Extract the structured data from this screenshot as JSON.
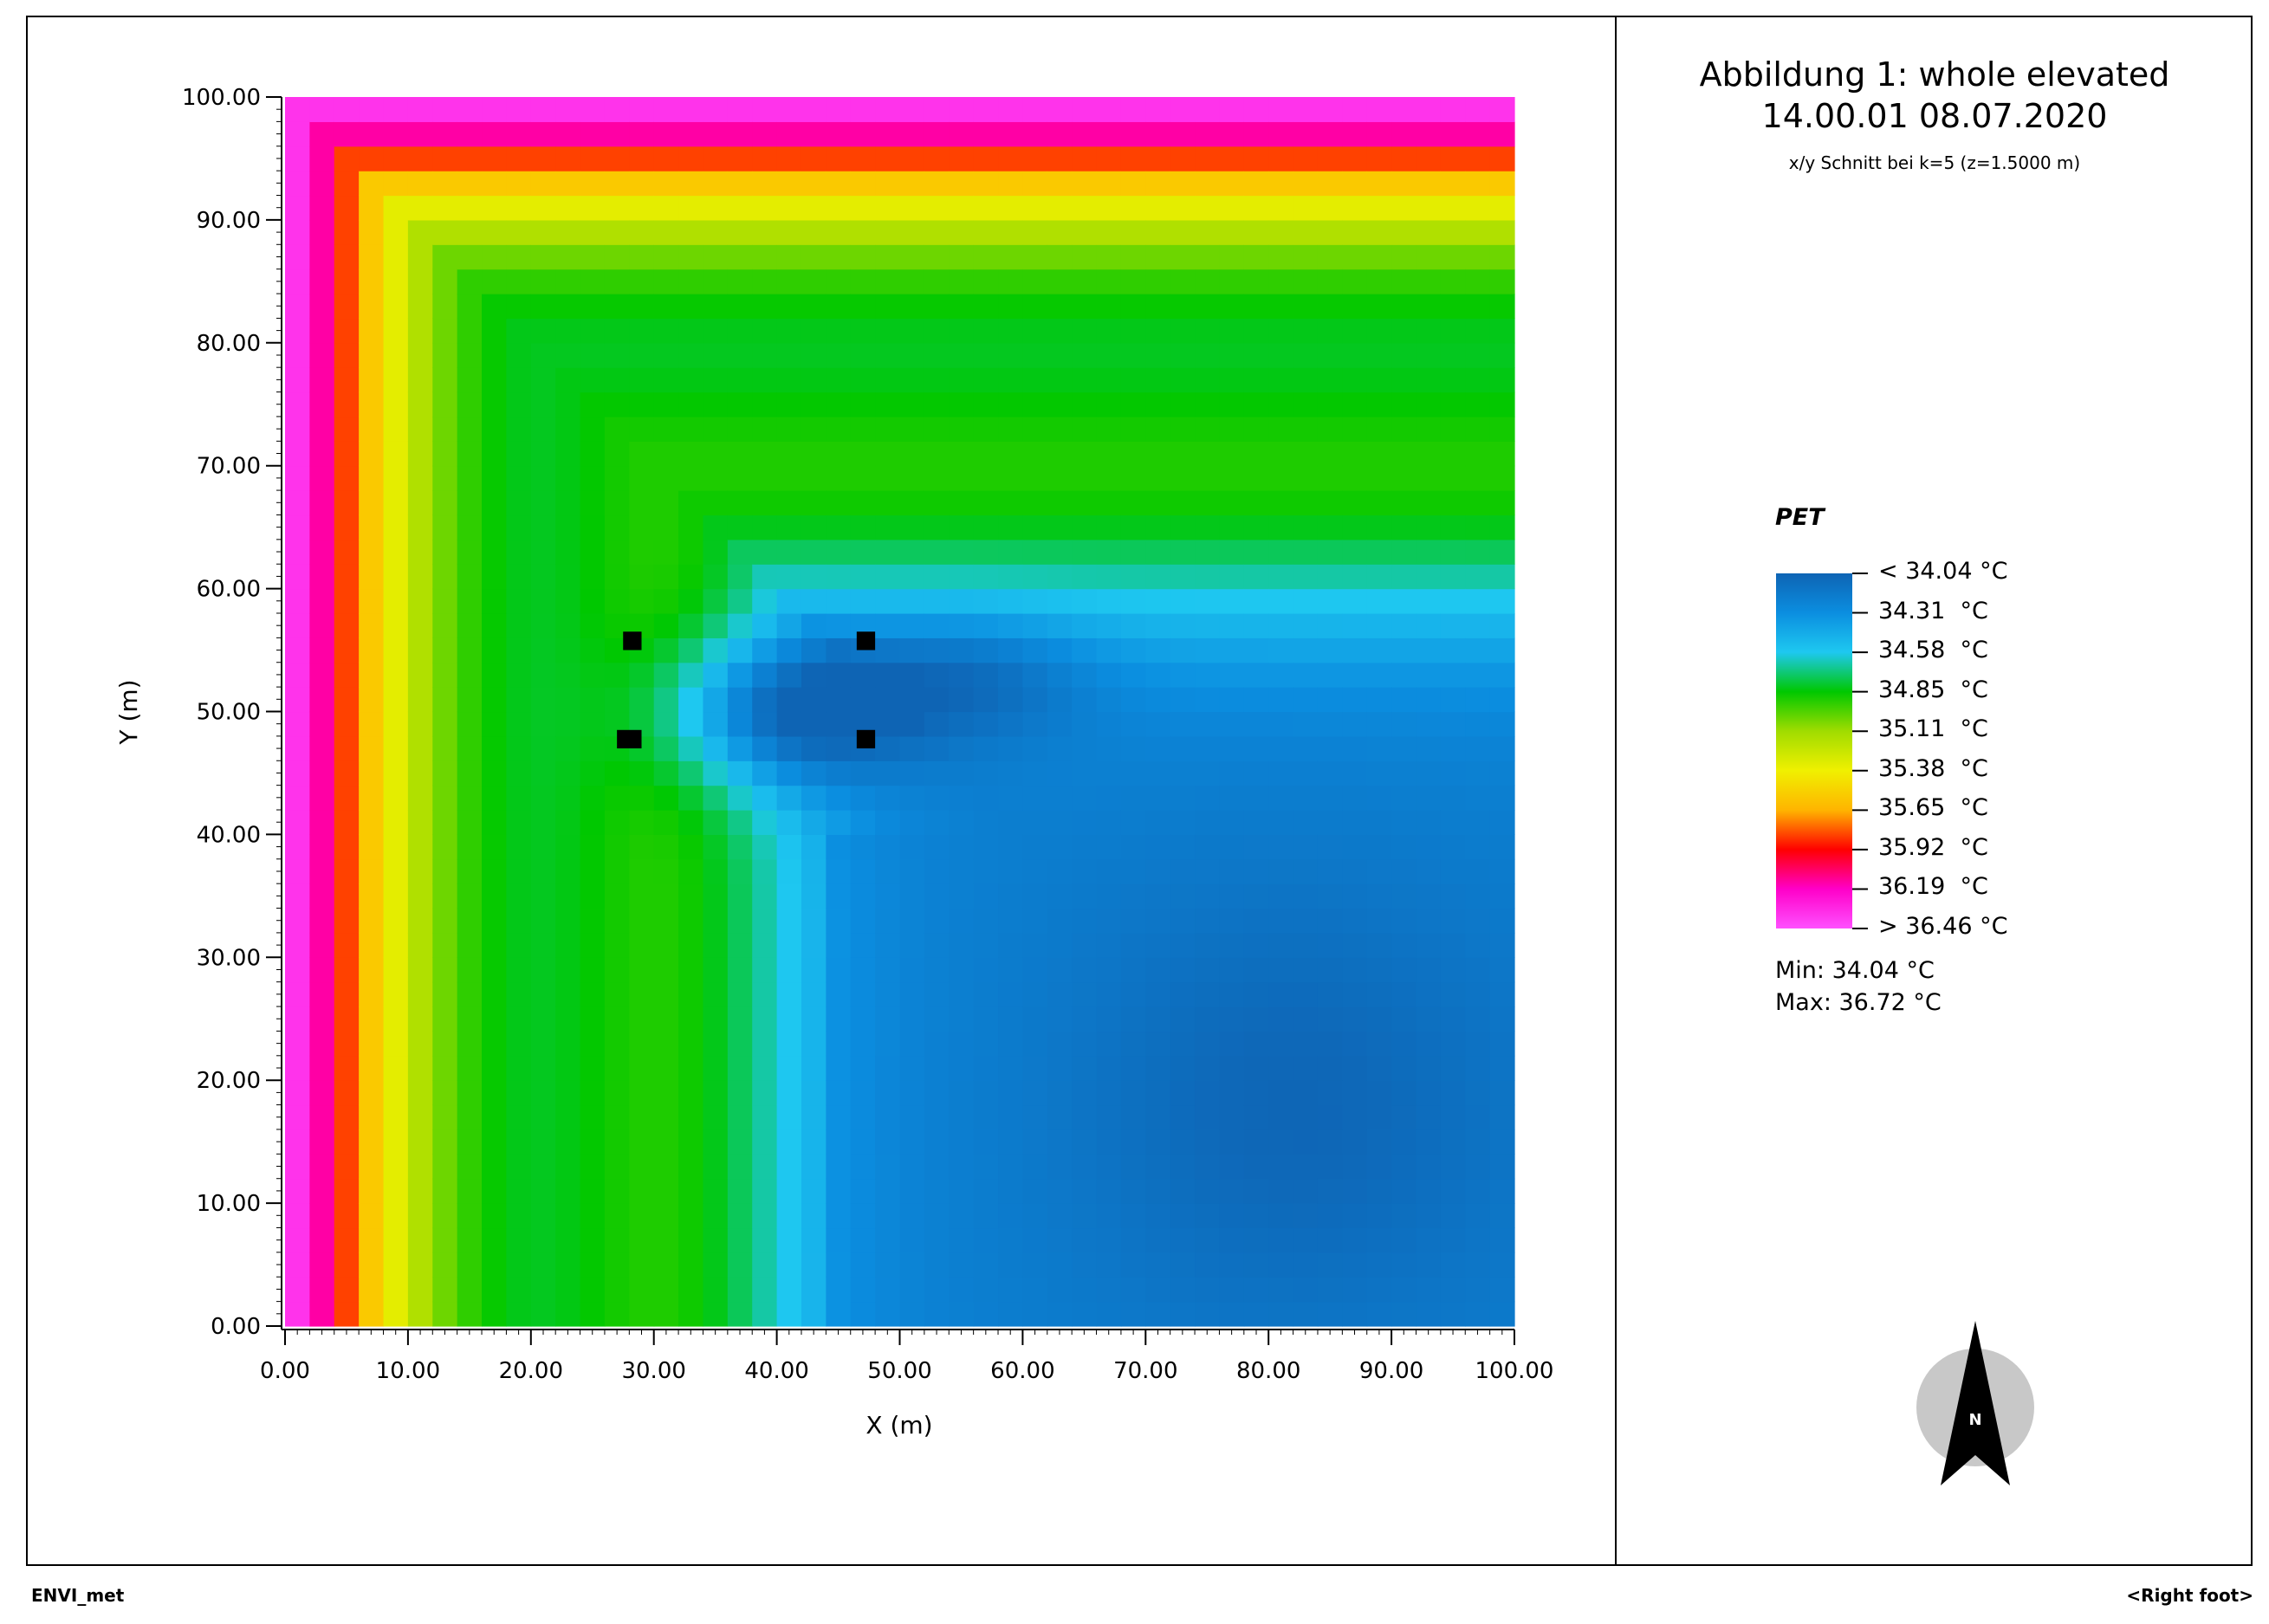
{
  "chart_data": {
    "type": "heatmap",
    "title": "Abbildung 1: whole elevated",
    "subtitle": "14.00.01 08.07.2020",
    "section_note": "x/y Schnitt bei k=5 (z=1.5000 m)",
    "xlabel": "X (m)",
    "ylabel": "Y (m)",
    "xlim": [
      0,
      100
    ],
    "ylim": [
      0,
      100
    ],
    "x_ticks": [
      "0.00",
      "10.00",
      "20.00",
      "30.00",
      "40.00",
      "50.00",
      "60.00",
      "70.00",
      "80.00",
      "90.00",
      "100.00"
    ],
    "y_ticks": [
      "0.00",
      "10.00",
      "20.00",
      "30.00",
      "40.00",
      "50.00",
      "60.00",
      "70.00",
      "80.00",
      "90.00",
      "100.00"
    ],
    "variable": "PET",
    "unit": "°C",
    "colorbar": {
      "labels": [
        "< 34.04 °C",
        "34.31  °C",
        "34.58  °C",
        "34.85  °C",
        "35.11  °C",
        "35.38  °C",
        "35.65  °C",
        "35.92  °C",
        "36.19  °C",
        "> 36.46 °C"
      ],
      "colors": [
        "#0e64b4",
        "#0b8ee0",
        "#1ec8f0",
        "#00c800",
        "#a0dc00",
        "#f0f000",
        "#ffb400",
        "#ff0000",
        "#ff00c8",
        "#ff50ff"
      ]
    },
    "min": "Min: 34.04 °C",
    "max": "Max: 36.72 °C",
    "value_range": [
      34.04,
      36.72
    ],
    "buildings": [
      {
        "x": [
          27,
          29
        ],
        "y": [
          47,
          48.5
        ]
      },
      {
        "x": [
          27.5,
          29
        ],
        "y": [
          55,
          56.5
        ]
      },
      {
        "x": [
          46.5,
          48
        ],
        "y": [
          55,
          56.5
        ]
      },
      {
        "x": [
          46.5,
          48
        ],
        "y": [
          47,
          48.5
        ]
      }
    ]
  },
  "footer": {
    "left": "ENVI_met",
    "right": "<Right foot>"
  },
  "compass": {
    "label": "N"
  }
}
